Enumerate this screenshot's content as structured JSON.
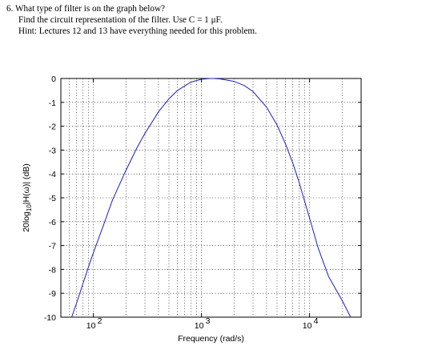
{
  "question": {
    "line1": "6.  What type of filter is on the graph below?",
    "line2": "Find the circuit representation of the filter. Use C = 1 μF.",
    "line3": "Hint: Lectures 12 and 13 have everything needed for this problem."
  },
  "chart_data": {
    "type": "line",
    "title": "",
    "xlabel": "Frequency (rad/s)",
    "ylabel": "20log10|H(ω)| (dB)",
    "xscale": "log",
    "xlim": [
      50,
      30000
    ],
    "ylim": [
      -10,
      0
    ],
    "x_ticks": [
      {
        "value": 100,
        "label": "10",
        "exp": "2"
      },
      {
        "value": 1000,
        "label": "10",
        "exp": "3"
      },
      {
        "value": 10000,
        "label": "10",
        "exp": "4"
      }
    ],
    "y_ticks": [
      0,
      -1,
      -2,
      -3,
      -4,
      -5,
      -6,
      -7,
      -8,
      -9,
      -10
    ],
    "grid": "dotted",
    "color": "#1f1fb4",
    "series": [
      {
        "x": [
          63,
          70,
          80,
          90,
          100,
          125,
          150,
          200,
          250,
          300,
          400,
          500,
          600,
          800,
          1000,
          1200,
          1300,
          1500,
          2000,
          2500,
          3000,
          4000,
          5000,
          6000,
          7000,
          8000,
          10000,
          12000,
          15000,
          20000,
          24000
        ],
        "values": [
          -10,
          -9.4,
          -8.6,
          -7.9,
          -7.3,
          -6.1,
          -5.1,
          -3.85,
          -2.95,
          -2.3,
          -1.4,
          -0.85,
          -0.5,
          -0.15,
          -0.03,
          0,
          0,
          -0.02,
          -0.12,
          -0.3,
          -0.55,
          -1.2,
          -1.95,
          -2.75,
          -3.55,
          -4.35,
          -5.85,
          -7.1,
          -8.3,
          -9.3,
          -10
        ]
      }
    ]
  }
}
